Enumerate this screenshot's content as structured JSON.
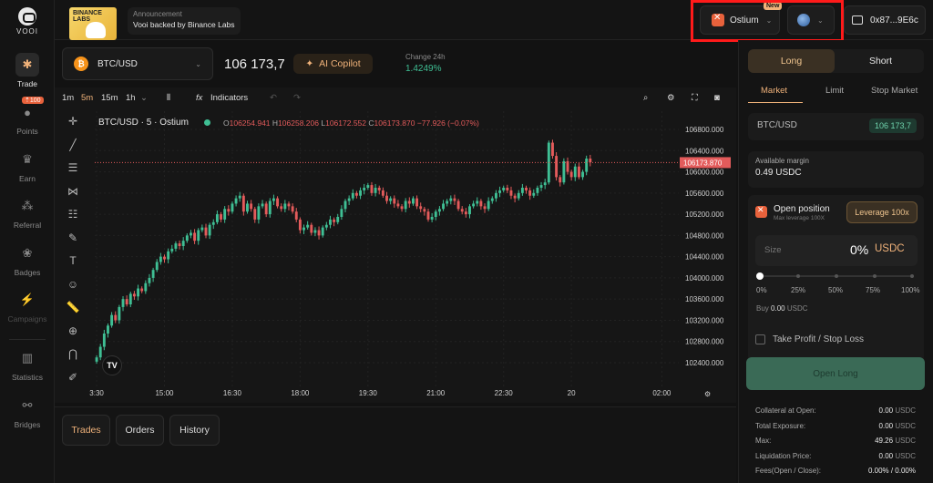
{
  "brand": {
    "name": "VOOI"
  },
  "sidebar": {
    "items": [
      {
        "label": "Trade",
        "icon": "trade-icon",
        "state": "active"
      },
      {
        "label": "Points",
        "icon": "points-icon",
        "badge": "100",
        "state": "normal"
      },
      {
        "label": "Earn",
        "icon": "earn-icon",
        "state": "normal"
      },
      {
        "label": "Referral",
        "icon": "referral-icon",
        "state": "normal"
      },
      {
        "label": "Badges",
        "icon": "badges-icon",
        "state": "normal"
      },
      {
        "label": "Campaigns",
        "icon": "campaigns-icon",
        "state": "disabled"
      },
      {
        "label": "Statistics",
        "icon": "statistics-icon",
        "state": "normal"
      },
      {
        "label": "Bridges",
        "icon": "bridges-icon",
        "state": "normal"
      }
    ]
  },
  "header": {
    "announcement_image_text": "BINANCE LABS",
    "announcement_label": "Announcement",
    "announcement_text": "Vooi backed by Binance Labs",
    "exchange_label": "Ostium",
    "exchange_badge": "New",
    "wallet_address": "0x87...9E6c"
  },
  "market": {
    "pair": "BTC/USD",
    "price": "106 173,7",
    "copilot_label": "AI Copilot",
    "change_label": "Change 24h",
    "change_value": "1.4249%"
  },
  "chart_toolbar": {
    "timeframes": [
      "1m",
      "5m",
      "15m",
      "1h"
    ],
    "active_timeframe": "5m",
    "indicators_label": "Indicators"
  },
  "chart_data": {
    "type": "candlestick",
    "title": "BTC/USD · 5 · Ostium",
    "ohlc": {
      "o_label": "O",
      "o": "106254.941",
      "h_label": "H",
      "h": "106258.206",
      "l_label": "L",
      "l": "106172.552",
      "c_label": "C",
      "c": "106173.870",
      "change": "−77.926 (−0.07%)"
    },
    "y_ticks": [
      106800,
      106400,
      106000,
      105600,
      105200,
      104800,
      104400,
      104000,
      103600,
      103200,
      102800,
      102400
    ],
    "y_tick_labels": [
      "106800.000",
      "106400.000",
      "106000.000",
      "105600.000",
      "105200.000",
      "104800.000",
      "104400.000",
      "104000.000",
      "103600.000",
      "103200.000",
      "102800.000",
      "102400.000"
    ],
    "ylim": [
      102250,
      107000
    ],
    "x_tick_labels": [
      "3:30",
      "15:00",
      "16:30",
      "18:00",
      "19:30",
      "21:00",
      "22:30",
      "20",
      "02:00"
    ],
    "x_tick_index": [
      0,
      18,
      36,
      54,
      72,
      90,
      108,
      126,
      150
    ],
    "n_slots": 155,
    "current_price": 106173.87,
    "current_price_label": "106173.870",
    "closes": [
      102500,
      102700,
      102950,
      103100,
      103300,
      103200,
      103450,
      103600,
      103500,
      103700,
      103650,
      103800,
      103750,
      103900,
      104000,
      104150,
      104300,
      104400,
      104350,
      104500,
      104550,
      104650,
      104600,
      104700,
      104800,
      104850,
      104700,
      104900,
      104950,
      104800,
      105000,
      105050,
      105200,
      105100,
      105300,
      105250,
      105400,
      105500,
      105550,
      105250,
      105400,
      105300,
      105100,
      105350,
      105400,
      105200,
      105450,
      105500,
      105350,
      105300,
      105400,
      105350,
      105250,
      105100,
      104900,
      104950,
      105000,
      104850,
      104900,
      104800,
      104950,
      105000,
      105100,
      105050,
      105150,
      105300,
      105450,
      105500,
      105600,
      105550,
      105650,
      105700,
      105750,
      105600,
      105700,
      105650,
      105550,
      105450,
      105500,
      105400,
      105350,
      105300,
      105450,
      105400,
      105500,
      105350,
      105300,
      105250,
      105100,
      105150,
      105250,
      105300,
      105400,
      105450,
      105500,
      105450,
      105300,
      105250,
      105200,
      105350,
      105400,
      105450,
      105350,
      105300,
      105450,
      105500,
      105600,
      105650,
      105700,
      105650,
      105550,
      105500,
      105600,
      105700,
      105650,
      105550,
      105600,
      105700,
      105750,
      105800,
      106550,
      106300,
      105900,
      105800,
      106200,
      106000,
      105900,
      106100,
      105900,
      106000,
      106250,
      106180
    ],
    "axis_color_up": "#3fbf94",
    "axis_color_down": "#e35b5b"
  },
  "bottom_tabs": [
    {
      "label": "Trades",
      "active": true
    },
    {
      "label": "Orders",
      "active": false
    },
    {
      "label": "History",
      "active": false
    }
  ],
  "order_panel": {
    "long_label": "Long",
    "short_label": "Short",
    "order_types": [
      "Market",
      "Limit",
      "Stop Market"
    ],
    "active_order_type": "Market",
    "asset": "BTC/USD",
    "asset_price": "106 173,7",
    "available_margin_label": "Available margin",
    "available_margin_value": "0.49 USDC",
    "open_position_label": "Open position",
    "max_leverage_label": "Max leverage 100X",
    "leverage_button": "Leverage 100x",
    "size_placeholder": "Size",
    "size_percent": "0%",
    "size_currency": "USDC",
    "slider_value": 0,
    "slider_labels": [
      "0%",
      "25%",
      "50%",
      "75%",
      "100%"
    ],
    "buy_label": "Buy",
    "buy_value": "0.00",
    "buy_currency": "USDC",
    "tpsl_label": "Take Profit / Stop Loss",
    "open_long_label": "Open Long",
    "stats": [
      {
        "label": "Collateral at Open:",
        "value": "0.00",
        "unit": "USDC"
      },
      {
        "label": "Total Exposure:",
        "value": "0.00",
        "unit": "USDC"
      },
      {
        "label": "Max:",
        "value": "49.26",
        "unit": "USDC"
      },
      {
        "label": "Liquidation Price:",
        "value": "0.00",
        "unit": "USDC"
      },
      {
        "label": "Fees(Open / Close):",
        "value": "0.00% / 0.00%",
        "unit": ""
      }
    ]
  },
  "colors": {
    "accent": "#f0b27a",
    "up": "#3fbf94",
    "down": "#e35b5b",
    "highlight_box": "#ff1a1a",
    "open_long_bg": "#3a6a56"
  }
}
